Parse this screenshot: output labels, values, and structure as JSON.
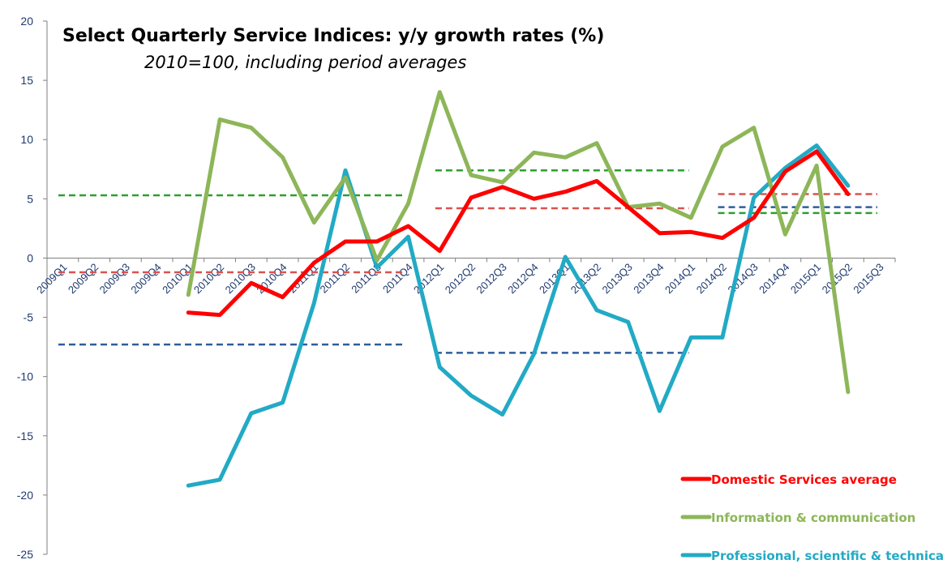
{
  "chart_data": {
    "type": "line",
    "title": "Select Quarterly Service Indices: y/y growth rates (%)",
    "subtitle": "2010=100, including period averages",
    "xlabel": "",
    "ylabel": "",
    "ylim": [
      -25,
      20
    ],
    "yticks": [
      20,
      15,
      10,
      5,
      0,
      -5,
      -10,
      -15,
      -20,
      -25
    ],
    "categories": [
      "2009Q1",
      "2009Q2",
      "2009Q3",
      "2009Q4",
      "2010Q1",
      "2010Q2",
      "2010Q3",
      "2010Q4",
      "2011Q1",
      "2011Q2",
      "2011Q3",
      "2011Q4",
      "2012Q1",
      "2012Q2",
      "2012Q3",
      "2012Q4",
      "2013Q1",
      "2013Q2",
      "2013Q3",
      "2013Q4",
      "2014Q1",
      "2014Q2",
      "2014Q3",
      "2014Q4",
      "2015Q1",
      "2015Q2",
      "2015Q3"
    ],
    "series": [
      {
        "name": "Domestic Services average",
        "color": "#ff0000",
        "values": [
          null,
          null,
          null,
          null,
          -4.6,
          -4.8,
          -2.1,
          -3.3,
          -0.4,
          1.4,
          1.4,
          2.7,
          0.6,
          5.1,
          6.0,
          5.0,
          5.6,
          6.5,
          4.3,
          2.1,
          2.2,
          1.7,
          3.4,
          7.3,
          9.0,
          5.4,
          null
        ]
      },
      {
        "name": "Information & communication",
        "color": "#8db659",
        "values": [
          null,
          null,
          null,
          null,
          -3.1,
          11.7,
          11.0,
          8.5,
          3.0,
          6.8,
          -0.2,
          4.6,
          14.0,
          7.0,
          6.4,
          8.9,
          8.5,
          9.7,
          4.3,
          4.6,
          3.4,
          9.4,
          11.0,
          2.0,
          7.8,
          -11.3,
          null
        ]
      },
      {
        "name": "Professional, scientific & technical",
        "color": "#22aac5",
        "values": [
          null,
          null,
          null,
          null,
          -19.2,
          -18.7,
          -13.1,
          -12.2,
          -3.8,
          7.4,
          -0.8,
          1.8,
          -9.2,
          -11.6,
          -13.2,
          -8.1,
          0.1,
          -4.4,
          -5.4,
          -12.9,
          -6.7,
          -6.7,
          5.1,
          7.6,
          9.5,
          6.1,
          null
        ]
      }
    ],
    "period_averages": [
      {
        "series": "Domestic Services average",
        "color": "#d9534f",
        "from": "2009Q1",
        "to": "2011Q4",
        "value": -1.2
      },
      {
        "series": "Information & communication",
        "color": "#2ca02c",
        "from": "2009Q1",
        "to": "2011Q4",
        "value": 5.3
      },
      {
        "series": "Professional, scientific & technical",
        "color": "#2e5d9c",
        "from": "2009Q1",
        "to": "2011Q4",
        "value": -7.3
      },
      {
        "series": "Domestic Services average",
        "color": "#d9534f",
        "from": "2012Q1",
        "to": "2014Q1",
        "value": 4.2
      },
      {
        "series": "Information & communication",
        "color": "#2ca02c",
        "from": "2012Q1",
        "to": "2014Q1",
        "value": 7.4
      },
      {
        "series": "Professional, scientific & technical",
        "color": "#2e5d9c",
        "from": "2012Q1",
        "to": "2014Q1",
        "value": -8.0
      },
      {
        "series": "Domestic Services average",
        "color": "#d9534f",
        "from": "2014Q2",
        "to": "2015Q3",
        "value": 5.4
      },
      {
        "series": "Information & communication",
        "color": "#2ca02c",
        "from": "2014Q2",
        "to": "2015Q3",
        "value": 3.8
      },
      {
        "series": "Professional, scientific & technical",
        "color": "#2e5d9c",
        "from": "2014Q2",
        "to": "2015Q3",
        "value": 4.3
      }
    ],
    "legend_position": "bottom-right",
    "grid": false
  }
}
